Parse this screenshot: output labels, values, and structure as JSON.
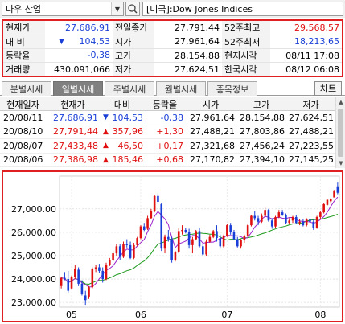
{
  "header": {
    "symbol": "다우 산업",
    "index_name": "[미국]:Dow Jones Indices"
  },
  "quote": {
    "rows": [
      {
        "l1": "현재가",
        "v1": "27,686,91",
        "c1": "blue",
        "l2": "전일종가",
        "v2": "27,791,44",
        "c2": "",
        "l3": "52주최고",
        "v3": "29,568,57",
        "c3": "red"
      },
      {
        "l1": "대 비",
        "v1": "104,53",
        "c1": "blue",
        "arrow1": "▼",
        "l2": "시가",
        "v2": "27,961,64",
        "c2": "",
        "l3": "52주최저",
        "v3": "18,213,65",
        "c3": "blue"
      },
      {
        "l1": "등락율",
        "v1": "-0,38",
        "c1": "blue",
        "l2": "고가",
        "v2": "28,154,88",
        "c2": "",
        "l3": "현지시각",
        "v3": "08/11 17:08",
        "c3": ""
      },
      {
        "l1": "거래량",
        "v1": "430,091,066",
        "c1": "",
        "l2": "저가",
        "v2": "27,624,51",
        "c2": "",
        "l3": "한국시각",
        "v3": "08/12 06:08",
        "c3": ""
      }
    ]
  },
  "tabs": [
    "분별시세",
    "일별시세",
    "주별시세",
    "월별시세",
    "종목정보"
  ],
  "chart_button": "차트",
  "daily": {
    "headers": [
      "현재일자",
      "현재가",
      "대비",
      "등락율",
      "시가",
      "고가",
      "저가"
    ],
    "rows": [
      {
        "date": "20/08/11",
        "close": "27,686,91",
        "arrow": "▼",
        "diff": "104,53",
        "rate": "-0,38",
        "open": "27,961,64",
        "high": "28,154,88",
        "low": "27,624,51",
        "color": "blue"
      },
      {
        "date": "20/08/10",
        "close": "27,791,44",
        "arrow": "▲",
        "diff": "357,96",
        "rate": "+1,30",
        "open": "27,488,21",
        "high": "27,803,86",
        "low": "27,488,21",
        "color": "red"
      },
      {
        "date": "20/08/07",
        "close": "27,433,48",
        "arrow": "▲",
        "diff": "46,50",
        "rate": "+0,17",
        "open": "27,321,68",
        "high": "27,456,24",
        "low": "27,223,55",
        "color": "red"
      },
      {
        "date": "20/08/06",
        "close": "27,386,98",
        "arrow": "▲",
        "diff": "185,46",
        "rate": "+0,68",
        "open": "27,170,82",
        "high": "27,394,10",
        "low": "27,145,25",
        "color": "red"
      }
    ]
  },
  "colors": {
    "up": "#e01010",
    "down": "#1a3fd8",
    "ma_short": "#9a22cc",
    "ma_long": "#1a9a1a",
    "highlight": "#e02020"
  },
  "chart_data": {
    "type": "candlestick",
    "y_ticks": [
      "27,000.00",
      "26,000.00",
      "25,000.00",
      "24,000.00",
      "23,000.00"
    ],
    "y_tick_values": [
      27000,
      26000,
      25000,
      24000,
      23000
    ],
    "ylim": [
      22800,
      28400
    ],
    "x_ticks": [
      "05",
      "06",
      "07",
      "08"
    ],
    "x_tick_index": [
      3,
      23,
      48,
      75
    ],
    "candles": [
      [
        23700,
        24100,
        23600,
        24050
      ],
      [
        24050,
        24300,
        23950,
        24000
      ],
      [
        24000,
        24350,
        23400,
        23500
      ],
      [
        23600,
        24150,
        23550,
        24100
      ],
      [
        24100,
        24600,
        24000,
        24450
      ],
      [
        24400,
        24500,
        23700,
        23800
      ],
      [
        23800,
        23950,
        23300,
        23350
      ],
      [
        23300,
        23500,
        22900,
        23100
      ],
      [
        23250,
        23700,
        23150,
        23650
      ],
      [
        23650,
        24500,
        23600,
        24450
      ],
      [
        24450,
        24600,
        24300,
        24500
      ],
      [
        24500,
        24650,
        24250,
        24350
      ],
      [
        24350,
        24500,
        23850,
        24000
      ],
      [
        24000,
        24700,
        23950,
        24600
      ],
      [
        24600,
        24900,
        24550,
        24800
      ],
      [
        24800,
        25200,
        24750,
        25100
      ],
      [
        25100,
        25500,
        25000,
        25400
      ],
      [
        25400,
        25500,
        24800,
        24950
      ],
      [
        24950,
        25600,
        24900,
        25500
      ],
      [
        25500,
        25700,
        25350,
        25450
      ],
      [
        25450,
        25600,
        24850,
        24900
      ],
      [
        24900,
        25550,
        24850,
        25450
      ],
      [
        25450,
        25800,
        25400,
        25750
      ],
      [
        25750,
        26300,
        25700,
        26250
      ],
      [
        26250,
        26400,
        26050,
        26100
      ],
      [
        26150,
        26700,
        26100,
        26600
      ],
      [
        26600,
        27000,
        26550,
        26900
      ],
      [
        26900,
        27600,
        26850,
        27550
      ],
      [
        27550,
        27700,
        27200,
        27300
      ],
      [
        27200,
        27250,
        25200,
        25300
      ],
      [
        25300,
        25900,
        25100,
        25800
      ],
      [
        25800,
        26100,
        25600,
        25700
      ],
      [
        25700,
        25800,
        24700,
        24800
      ],
      [
        24800,
        25200,
        24750,
        25150
      ],
      [
        25150,
        26200,
        25100,
        26050
      ],
      [
        26050,
        26300,
        25900,
        26100
      ],
      [
        26100,
        26200,
        25950,
        26000
      ],
      [
        26000,
        26150,
        25300,
        25450
      ],
      [
        25450,
        25800,
        25100,
        25700
      ],
      [
        25700,
        26100,
        25650,
        26050
      ],
      [
        26050,
        26200,
        25350,
        25400
      ],
      [
        25400,
        25500,
        25000,
        25050
      ],
      [
        25050,
        25700,
        25000,
        25600
      ],
      [
        25600,
        25900,
        25550,
        25800
      ],
      [
        25800,
        26100,
        25750,
        26050
      ],
      [
        26050,
        26300,
        25600,
        25750
      ],
      [
        25750,
        25900,
        25300,
        25400
      ],
      [
        25400,
        25900,
        25350,
        25850
      ],
      [
        25850,
        26350,
        25800,
        26300
      ],
      [
        26300,
        26400,
        25900,
        26000
      ],
      [
        26000,
        26100,
        25650,
        25700
      ],
      [
        25700,
        25800,
        25350,
        25400
      ],
      [
        25400,
        25700,
        25300,
        25650
      ],
      [
        25650,
        25900,
        25550,
        25850
      ],
      [
        25850,
        26350,
        25800,
        26300
      ],
      [
        26300,
        26750,
        26250,
        26700
      ],
      [
        26700,
        26900,
        26500,
        26600
      ],
      [
        26600,
        26700,
        26300,
        26450
      ],
      [
        26450,
        26800,
        26400,
        26700
      ],
      [
        26700,
        27050,
        26650,
        26950
      ],
      [
        26950,
        27000,
        26450,
        26500
      ],
      [
        26500,
        26600,
        26150,
        26250
      ],
      [
        26250,
        26700,
        26200,
        26650
      ],
      [
        26650,
        26950,
        26600,
        26850
      ],
      [
        26850,
        26950,
        26700,
        26750
      ],
      [
        26750,
        26800,
        26350,
        26400
      ],
      [
        26400,
        26600,
        26350,
        26500
      ],
      [
        26500,
        26700,
        26400,
        26650
      ],
      [
        26650,
        26750,
        26350,
        26400
      ],
      [
        26400,
        26550,
        26300,
        26450
      ],
      [
        26450,
        26550,
        26250,
        26300
      ],
      [
        26300,
        26600,
        26250,
        26550
      ],
      [
        26550,
        26700,
        26400,
        26450
      ],
      [
        26450,
        26550,
        26100,
        26200
      ],
      [
        26200,
        26700,
        26150,
        26650
      ],
      [
        26650,
        26900,
        26550,
        26850
      ],
      [
        26850,
        27250,
        26800,
        27200
      ],
      [
        27170,
        27394,
        27145,
        27387
      ],
      [
        27322,
        27456,
        27224,
        27433
      ],
      [
        27488,
        27804,
        27488,
        27791
      ],
      [
        27962,
        28155,
        27625,
        27687
      ]
    ]
  }
}
